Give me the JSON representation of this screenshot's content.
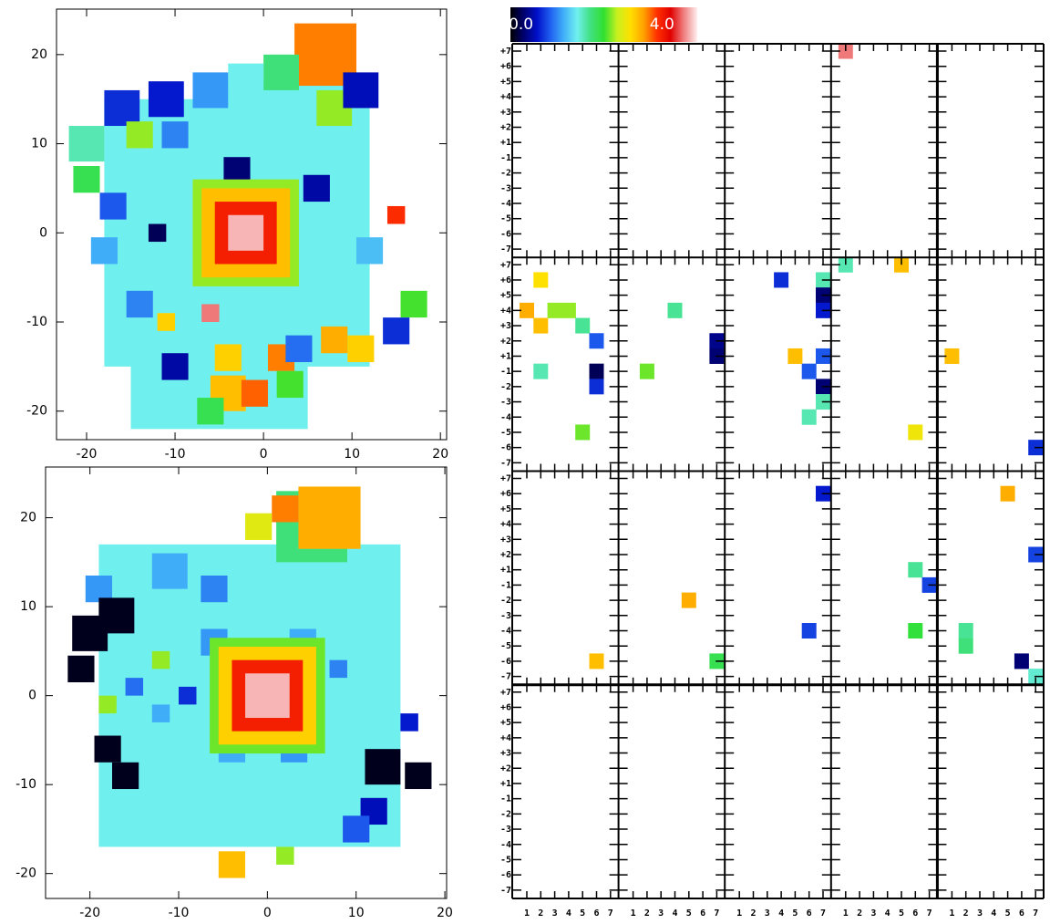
{
  "chart_data": [
    {
      "type": "heatmap",
      "xlim": [
        -23.4,
        20.7
      ],
      "ylim": [
        -23.2,
        25.1
      ],
      "xticks": [
        -20,
        -10,
        0,
        10,
        20
      ],
      "yticks": [
        -20,
        -10,
        0,
        10,
        20
      ],
      "cells": [
        [
          -3,
          0,
          30,
          1.6
        ],
        [
          2,
          8,
          18,
          1.6
        ],
        [
          -5,
          -12,
          20,
          1.6
        ],
        [
          7,
          20,
          7,
          3.6
        ],
        [
          2,
          18,
          4,
          2.0
        ],
        [
          -2,
          17,
          4,
          1.6
        ],
        [
          -6,
          16,
          4,
          1.1
        ],
        [
          -11,
          15,
          4,
          0.5
        ],
        [
          -16,
          14,
          4,
          0.6
        ],
        [
          8,
          14,
          4,
          2.6
        ],
        [
          11,
          16,
          4,
          0.4
        ],
        [
          -20,
          10,
          4,
          1.8
        ],
        [
          -14,
          11,
          3,
          2.6
        ],
        [
          -10,
          11,
          3,
          1.0
        ],
        [
          -20,
          6,
          3,
          2.2
        ],
        [
          -3,
          7,
          3,
          0.1
        ],
        [
          6,
          5,
          3,
          0.3
        ],
        [
          -17,
          3,
          3,
          0.8
        ],
        [
          15,
          2,
          2,
          3.9
        ],
        [
          -12,
          0,
          2,
          0.0
        ],
        [
          12,
          -2,
          3,
          1.3
        ],
        [
          -14,
          -8,
          3,
          1.0
        ],
        [
          -11,
          -10,
          2,
          3.2
        ],
        [
          -6,
          -9,
          2,
          4.6
        ],
        [
          17,
          -8,
          3,
          2.4
        ],
        [
          15,
          -11,
          3,
          0.6
        ],
        [
          -10,
          -15,
          3,
          0.3
        ],
        [
          -4,
          -14,
          3,
          3.2
        ],
        [
          2,
          -14,
          3,
          3.6
        ],
        [
          8,
          -12,
          3,
          3.4
        ],
        [
          11,
          -13,
          3,
          3.2
        ],
        [
          -4,
          -18,
          4,
          3.3
        ],
        [
          -1,
          -18,
          3,
          3.7
        ],
        [
          3,
          -17,
          3,
          2.4
        ],
        [
          -6,
          -20,
          3,
          2.2
        ],
        [
          4,
          -13,
          3,
          0.9
        ],
        [
          -18,
          -2,
          3,
          1.2
        ],
        [
          -2,
          0,
          12,
          2.6
        ],
        [
          -2,
          0,
          10,
          3.3
        ],
        [
          -2,
          0,
          7,
          4.0
        ],
        [
          -2,
          0,
          4,
          4.8
        ]
      ]
    },
    {
      "type": "heatmap",
      "xlim": [
        -25,
        20.2
      ],
      "ylim": [
        -22.8,
        25.7
      ],
      "xticks": [
        -20,
        -10,
        0,
        10,
        20
      ],
      "yticks": [
        -20,
        -10,
        0,
        10,
        20
      ],
      "cells": [
        [
          -2,
          0,
          34,
          1.6
        ],
        [
          5,
          19,
          8,
          2.0
        ],
        [
          7,
          20,
          7,
          3.4
        ],
        [
          2,
          21,
          3,
          3.6
        ],
        [
          -1,
          19,
          3,
          2.9
        ],
        [
          -11,
          14,
          4,
          1.2
        ],
        [
          -6,
          12,
          3,
          1.0
        ],
        [
          -19,
          12,
          3,
          1.1
        ],
        [
          -20,
          7,
          4,
          -0.2
        ],
        [
          -17,
          9,
          4,
          -0.2
        ],
        [
          -21,
          3,
          3,
          -0.2
        ],
        [
          -18,
          -6,
          3,
          -0.2
        ],
        [
          -16,
          -9,
          3,
          -0.2
        ],
        [
          13,
          -8,
          4,
          -0.2
        ],
        [
          17,
          -9,
          3,
          -0.2
        ],
        [
          -9,
          0,
          2,
          0.6
        ],
        [
          -15,
          1,
          2,
          0.9
        ],
        [
          16,
          -3,
          2,
          0.5
        ],
        [
          12,
          -13,
          3,
          0.4
        ],
        [
          10,
          -15,
          3,
          0.8
        ],
        [
          -12,
          -2,
          2,
          1.2
        ],
        [
          -4,
          -6,
          3,
          1.2
        ],
        [
          3,
          -6,
          3,
          1.1
        ],
        [
          -6,
          6,
          3,
          1.1
        ],
        [
          4,
          6,
          3,
          1.2
        ],
        [
          8,
          3,
          2,
          1.0
        ],
        [
          -18,
          -1,
          2,
          2.6
        ],
        [
          -12,
          4,
          2,
          2.6
        ],
        [
          2,
          -18,
          2,
          2.6
        ],
        [
          -4,
          -19,
          3,
          3.3
        ],
        [
          0,
          0,
          13,
          2.5
        ],
        [
          0,
          0,
          11,
          3.2
        ],
        [
          0,
          0,
          8,
          4.0
        ],
        [
          0,
          0,
          5,
          4.8
        ]
      ]
    },
    {
      "type": "panel-grid",
      "colormap": [
        "#000000",
        "#00006e",
        "#0010c8",
        "#2060f0",
        "#40b0f8",
        "#70f0f0",
        "#40e080",
        "#30e030",
        "#c8f020",
        "#ffe000",
        "#ffa000",
        "#ff3000",
        "#e00000",
        "#f08080",
        "#fff0f0"
      ],
      "colorbar": {
        "lim": [
          -0.3,
          5.0
        ],
        "ticks": [
          {
            "value": 0,
            "label": "0.0"
          },
          {
            "value": 4,
            "label": "4.0"
          }
        ]
      },
      "xticks": [
        1,
        2,
        3,
        4,
        5,
        6,
        7
      ],
      "yticks": [
        {
          "value": 7,
          "label": "+7"
        },
        {
          "value": 6,
          "label": "+6"
        },
        {
          "value": 5,
          "label": "+5"
        },
        {
          "value": 4,
          "label": "+4"
        },
        {
          "value": 3,
          "label": "+3"
        },
        {
          "value": 2,
          "label": "+2"
        },
        {
          "value": 1,
          "label": "+1"
        },
        -1,
        -2,
        -3,
        -4,
        -5,
        -6,
        -7
      ],
      "panels": [
        [
          [],
          [],
          [],
          [
            [
              1,
              7,
              4.6
            ]
          ],
          []
        ],
        [
          [
            [
              2,
              6,
              3.1
            ],
            [
              1,
              4,
              3.4
            ],
            [
              2,
              3,
              3.3
            ],
            [
              3,
              4,
              2.6
            ],
            [
              4,
              4,
              2.6
            ],
            [
              5,
              3,
              1.9
            ],
            [
              6,
              2,
              0.8
            ],
            [
              6,
              -1,
              0.0
            ],
            [
              2,
              -1,
              1.8
            ],
            [
              6,
              -2,
              0.6
            ],
            [
              5,
              -5,
              2.5
            ]
          ],
          [
            [
              4,
              4,
              1.9
            ],
            [
              2,
              -1,
              2.5
            ],
            [
              7,
              2,
              0.2
            ],
            [
              7,
              1,
              0.1
            ]
          ],
          [
            [
              4,
              6,
              0.6
            ],
            [
              7,
              6,
              1.8
            ],
            [
              7,
              5,
              0.1
            ],
            [
              7,
              4,
              0.5
            ],
            [
              5,
              1,
              3.3
            ],
            [
              7,
              1,
              0.8
            ],
            [
              6,
              -1,
              0.8
            ],
            [
              7,
              -2,
              0.1
            ],
            [
              7,
              -3,
              1.8
            ],
            [
              6,
              -4,
              1.8
            ]
          ],
          [
            [
              1,
              7,
              1.8
            ],
            [
              5,
              7,
              3.3
            ],
            [
              6,
              -5,
              3.0
            ]
          ],
          [
            [
              1,
              1,
              3.3
            ],
            [
              7,
              -6,
              0.6
            ]
          ]
        ],
        [
          [
            [
              6,
              -6,
              3.3
            ]
          ],
          [
            [
              5,
              -2,
              3.4
            ],
            [
              7,
              -6,
              2.2
            ]
          ],
          [
            [
              7,
              6,
              0.5
            ],
            [
              6,
              -4,
              0.7
            ]
          ],
          [
            [
              6,
              1,
              1.9
            ],
            [
              7,
              -1,
              0.7
            ],
            [
              6,
              -4,
              2.3
            ]
          ],
          [
            [
              5,
              6,
              3.4
            ],
            [
              7,
              2,
              0.7
            ],
            [
              2,
              -4,
              1.9
            ],
            [
              2,
              -5,
              2.0
            ],
            [
              6,
              -6,
              0.1
            ],
            [
              7,
              -7,
              1.7
            ]
          ]
        ],
        [
          [],
          [],
          [],
          [],
          []
        ]
      ]
    }
  ]
}
